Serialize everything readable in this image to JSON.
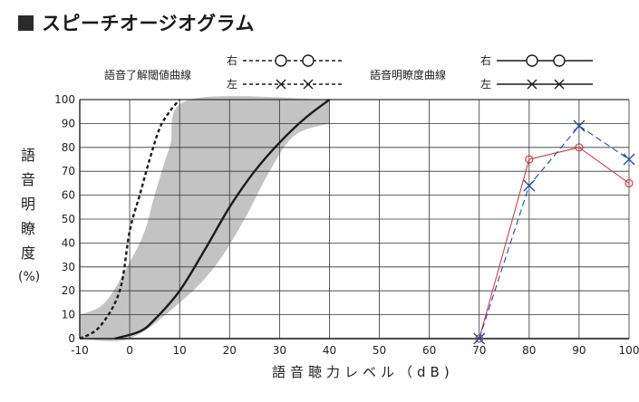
{
  "page": {
    "title": "スピーチオージオグラム"
  },
  "legend": {
    "threshold": {
      "name": "語音了解閾値曲線",
      "right_label": "右",
      "left_label": "左"
    },
    "discrimination": {
      "name": "語音明瞭度曲線",
      "right_label": "右",
      "left_label": "左"
    }
  },
  "colors": {
    "band": "#bdbdbd",
    "normal_curve": "#1a1a1a",
    "reference_curve": "#1a1a1a",
    "right_ear": "#d23c4b",
    "left_ear": "#1f4f9c"
  },
  "chart_data": {
    "type": "line",
    "ylabel": "語音明瞭度",
    "ylabel_unit": "(%)",
    "xlabel": "語音聴力レベル（dB)",
    "xlim": [
      -10,
      100
    ],
    "ylim": [
      0,
      100
    ],
    "x_ticks": [
      -10,
      0,
      10,
      20,
      30,
      40,
      50,
      60,
      70,
      80,
      90,
      100
    ],
    "y_ticks": [
      0,
      10,
      20,
      30,
      40,
      50,
      60,
      70,
      80,
      90,
      100
    ],
    "grid": true,
    "reference_band": {
      "upper": [
        [
          -10,
          10
        ],
        [
          -5,
          15
        ],
        [
          0,
          32
        ],
        [
          3,
          45
        ],
        [
          5,
          60
        ],
        [
          8,
          80
        ],
        [
          12,
          100
        ],
        [
          40,
          100
        ]
      ],
      "lower": [
        [
          -10,
          0
        ],
        [
          0,
          0
        ],
        [
          10,
          15
        ],
        [
          17,
          30
        ],
        [
          23,
          50
        ],
        [
          28,
          70
        ],
        [
          33,
          85
        ],
        [
          40,
          90
        ]
      ]
    },
    "reference_curves": [
      {
        "style": "dashed",
        "points": [
          [
            -10,
            0
          ],
          [
            -6,
            5
          ],
          [
            -2,
            20
          ],
          [
            0,
            45
          ],
          [
            2,
            60
          ],
          [
            4,
            75
          ],
          [
            6,
            88
          ],
          [
            8,
            95
          ],
          [
            10,
            100
          ]
        ]
      },
      {
        "style": "solid",
        "points": [
          [
            -3,
            0
          ],
          [
            2,
            3
          ],
          [
            5,
            8
          ],
          [
            10,
            20
          ],
          [
            15,
            37
          ],
          [
            20,
            55
          ],
          [
            25,
            70
          ],
          [
            30,
            82
          ],
          [
            35,
            92
          ],
          [
            40,
            100
          ]
        ]
      }
    ],
    "series": [
      {
        "side": "right",
        "marker": "circle",
        "line": "solid",
        "points": [
          [
            70,
            0
          ],
          [
            80,
            75
          ],
          [
            90,
            80
          ],
          [
            100,
            65
          ]
        ]
      },
      {
        "side": "left",
        "marker": "cross",
        "line": "dash",
        "points": [
          [
            70,
            0
          ],
          [
            80,
            64
          ],
          [
            90,
            89
          ],
          [
            100,
            75
          ]
        ]
      }
    ]
  }
}
